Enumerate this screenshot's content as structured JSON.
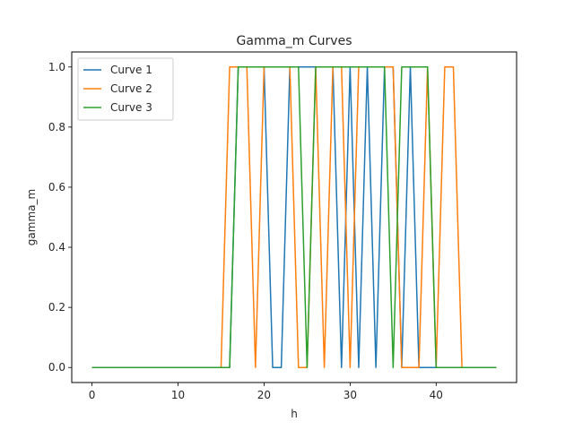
{
  "chart_data": {
    "type": "line",
    "title": "Gamma_m Curves",
    "xlabel": "h",
    "ylabel": "gamma_m",
    "xlim": [
      -2.35,
      49.35
    ],
    "ylim": [
      -0.05,
      1.05
    ],
    "xticks": [
      0,
      10,
      20,
      30,
      40
    ],
    "yticks": [
      0.0,
      0.2,
      0.4,
      0.6,
      0.8,
      1.0
    ],
    "ytick_labels": [
      "0.0",
      "0.2",
      "0.4",
      "0.6",
      "0.8",
      "1.0"
    ],
    "grid": false,
    "legend_position": "top-left",
    "x": [
      0,
      1,
      2,
      3,
      4,
      5,
      6,
      7,
      8,
      9,
      10,
      11,
      12,
      13,
      14,
      15,
      16,
      17,
      18,
      19,
      20,
      21,
      22,
      23,
      24,
      25,
      26,
      27,
      28,
      29,
      30,
      31,
      32,
      33,
      34,
      35,
      36,
      37,
      38,
      39,
      40,
      41,
      42,
      43,
      44,
      45,
      46,
      47
    ],
    "series": [
      {
        "name": "Curve 1",
        "color": "#1f77b4",
        "values": [
          0,
          0,
          0,
          0,
          0,
          0,
          0,
          0,
          0,
          0,
          0,
          0,
          0,
          0,
          0,
          0,
          0,
          1,
          1,
          1,
          1,
          0,
          0,
          1,
          1,
          1,
          1,
          1,
          1,
          0,
          1,
          0,
          1,
          0,
          1,
          1,
          0,
          1,
          0,
          0,
          0,
          0,
          0,
          0,
          0,
          0,
          0,
          0
        ]
      },
      {
        "name": "Curve 2",
        "color": "#ff7f0e",
        "values": [
          0,
          0,
          0,
          0,
          0,
          0,
          0,
          0,
          0,
          0,
          0,
          0,
          0,
          0,
          0,
          0,
          1,
          1,
          1,
          0,
          1,
          1,
          1,
          1,
          0,
          0,
          1,
          0,
          1,
          1,
          0,
          1,
          1,
          1,
          1,
          1,
          0,
          0,
          0,
          1,
          0,
          1,
          1,
          0,
          0,
          0,
          0,
          0
        ]
      },
      {
        "name": "Curve 3",
        "color": "#2ca02c",
        "values": [
          0,
          0,
          0,
          0,
          0,
          0,
          0,
          0,
          0,
          0,
          0,
          0,
          0,
          0,
          0,
          0,
          0,
          1,
          1,
          1,
          1,
          1,
          1,
          1,
          1,
          0,
          1,
          1,
          1,
          1,
          1,
          1,
          1,
          1,
          1,
          0,
          1,
          1,
          1,
          1,
          0,
          0,
          0,
          0,
          0,
          0,
          0,
          0
        ]
      }
    ]
  }
}
